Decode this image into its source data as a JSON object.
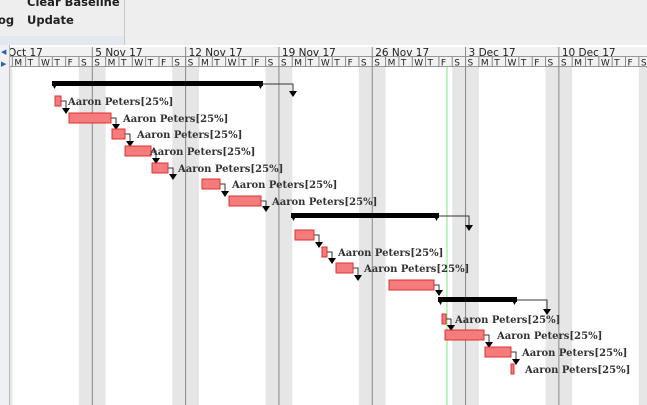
{
  "toolbar": {
    "clear_baseline": "Clear Baseline",
    "update": "Update",
    "clipped_item": "og"
  },
  "timeline": {
    "weeks": [
      "Oct 17",
      "5 Nov 17",
      "12 Nov 17",
      "19 Nov 17",
      "26 Nov 17",
      "3 Dec 17",
      "10 Dec 17"
    ],
    "day_letters": [
      "S",
      "M",
      "T",
      "W",
      "T",
      "F",
      "S"
    ]
  },
  "tasks": [
    {
      "label": ""
    },
    {
      "label": "Aaron Peters[25%]"
    },
    {
      "label": "Aaron Peters[25%]"
    },
    {
      "label": "Aaron Peters[25%]"
    },
    {
      "label": "Aaron Peters[25%]"
    },
    {
      "label": "Aaron Peters[25%]"
    },
    {
      "label": "Aaron Peters[25%]"
    },
    {
      "label": "Aaron Peters[25%]"
    },
    {
      "label": ""
    },
    {
      "label": ""
    },
    {
      "label": "Aaron Peters[25%]"
    },
    {
      "label": "Aaron Peters[25%]"
    },
    {
      "label": ""
    },
    {
      "label": ""
    },
    {
      "label": "Aaron Peters[25%]"
    },
    {
      "label": "Aaron Peters[25%]"
    },
    {
      "label": "Aaron Peters[25%]"
    },
    {
      "label": "Aaron Peters[25%]"
    }
  ],
  "colors": {
    "task_fill": "#f47c7c",
    "task_border": "#e03030",
    "summary": "#000000",
    "today_line": "#7de87d",
    "weekend": "#e6e6e6"
  }
}
